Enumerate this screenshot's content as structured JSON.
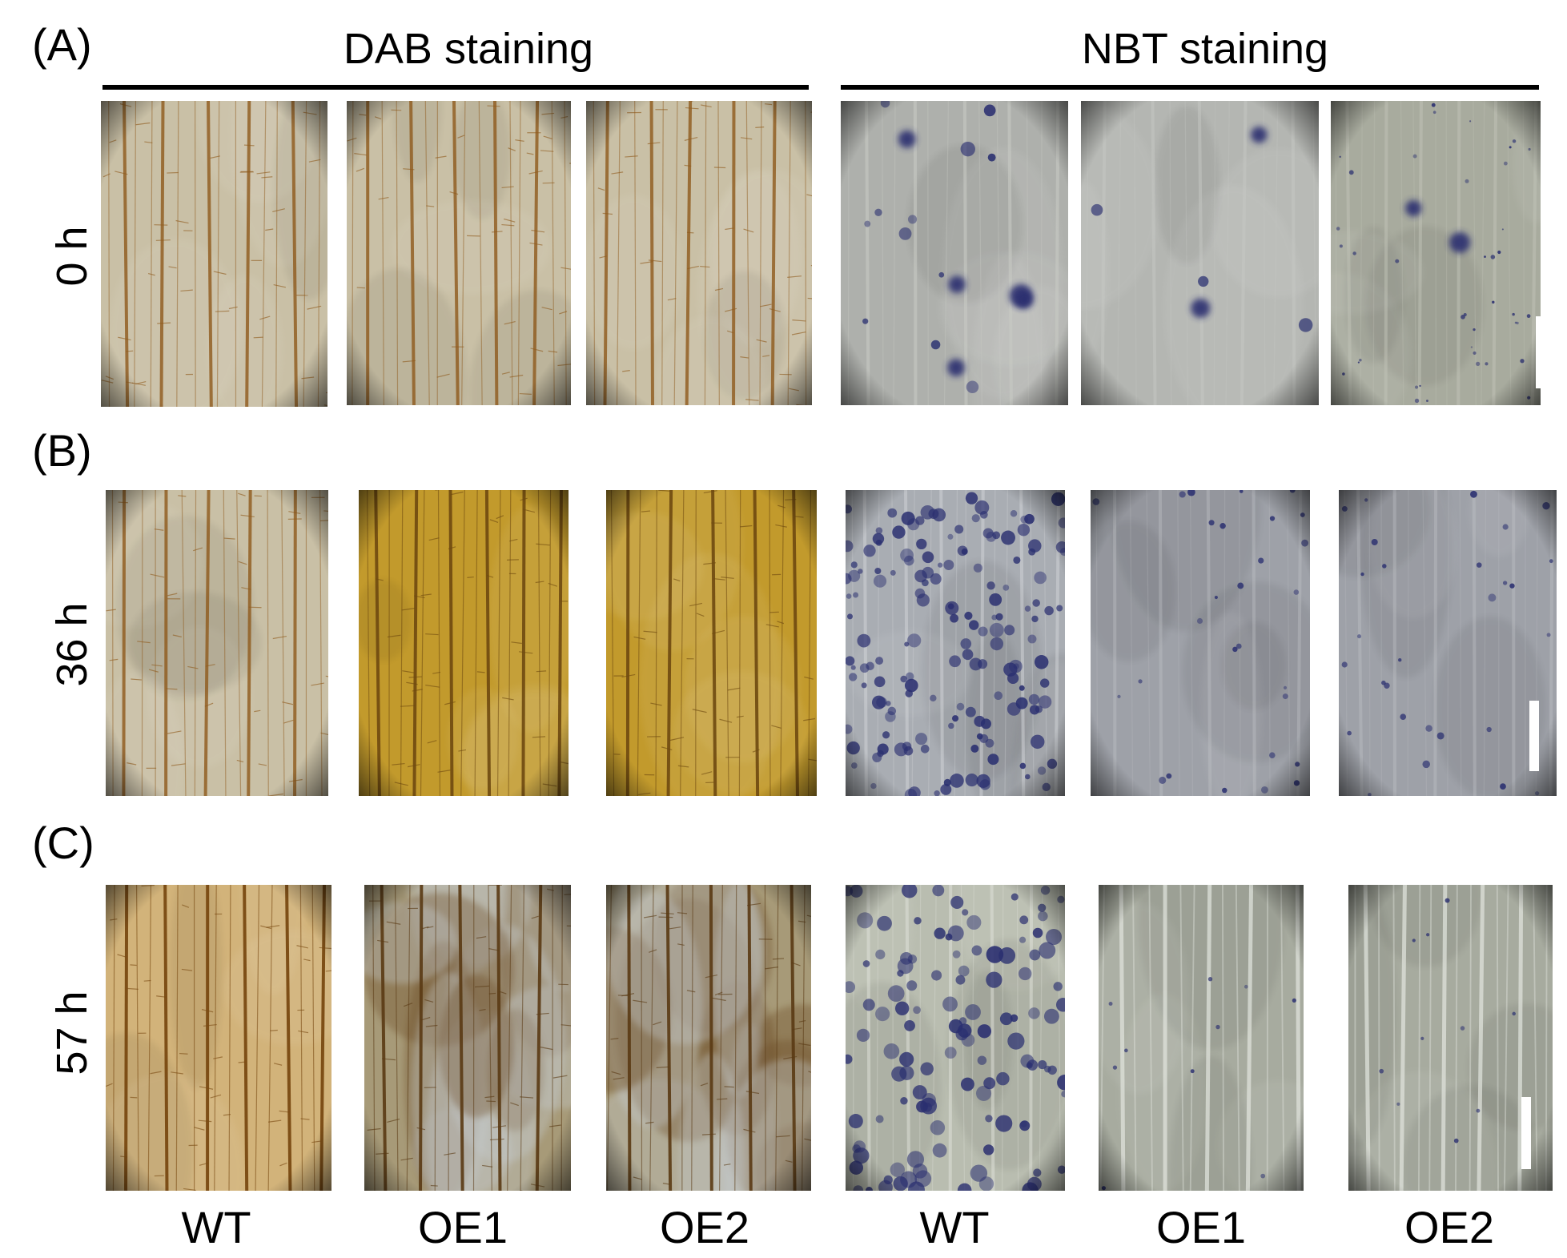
{
  "panels": [
    {
      "letter": "(A)",
      "time": "0 h"
    },
    {
      "letter": "(B)",
      "time": "36 h"
    },
    {
      "letter": "(C)",
      "time": "57 h"
    }
  ],
  "headers": {
    "dab": "DAB staining",
    "nbt": "NBT staining"
  },
  "columns": [
    "WT",
    "OE1",
    "OE2",
    "WT",
    "OE1",
    "OE2"
  ],
  "colors": {
    "dab_light": "#c9c0a6",
    "dab_yellow": "#c29a2c",
    "nbt_grey": "#aeb0ac",
    "nbt_blue": "#2a2f70",
    "vein_brown": "#8f5a1c"
  }
}
